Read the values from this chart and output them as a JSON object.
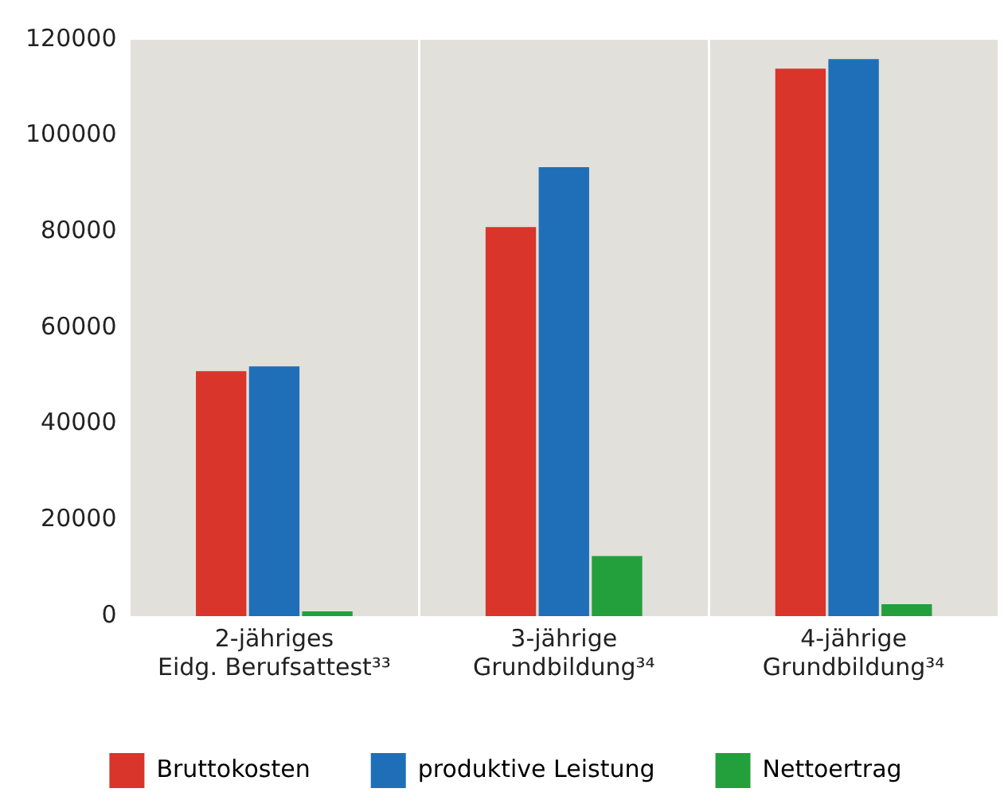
{
  "chart_data": {
    "type": "bar",
    "categories": [
      "2-jähriges Eidg. Berufsattest³³",
      "3-jährige Grundbildung³⁴",
      "4-jährige Grundbildung³⁴"
    ],
    "series": [
      {
        "name": "Bruttokosten",
        "color": "#d9352b",
        "values": [
          51000,
          81000,
          114000
        ]
      },
      {
        "name": "produktive Leistung",
        "color": "#1f6fb8",
        "values": [
          52000,
          93500,
          116000
        ]
      },
      {
        "name": "Nettoertrag",
        "color": "#23a03c",
        "values": [
          1000,
          12500,
          2500
        ]
      }
    ],
    "ylim": [
      0,
      120000
    ],
    "yticks": [
      0,
      20000,
      40000,
      60000,
      80000,
      100000,
      120000
    ],
    "grid": "x",
    "legend": "bottom"
  }
}
